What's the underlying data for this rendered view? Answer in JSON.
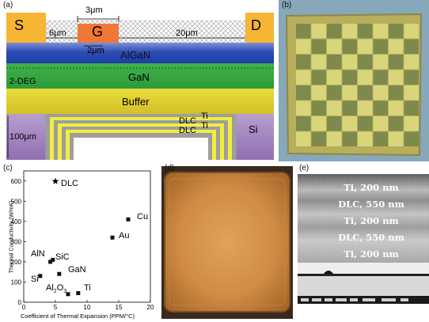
{
  "panels": {
    "a": {
      "label": "(a)",
      "s_label": "S",
      "g_label": "G",
      "d_label": "D",
      "dim_3um": "3μm",
      "dim_6um": "6μm",
      "dim_20um": "20μm",
      "dim_2um": "2μm",
      "algan": "AlGaN",
      "twodeg": "2-DEG",
      "gan": "GaN",
      "buffer": "Buffer",
      "dlc1": "DLC",
      "ti1": "Ti",
      "dlc2": "DLC",
      "ti2": "Ti",
      "dim_100um": "100μm",
      "si": "Si",
      "colors": {
        "electrode": "#f6b533",
        "algan": "#2b4eb4",
        "gan": "#3fb249",
        "buffer": "#e6d633",
        "si": "#9a79b8",
        "ti": "#f2ef3c",
        "dlc": "#9e9e9e"
      }
    },
    "b": {
      "label": "(b)"
    },
    "c": {
      "label": "(c)"
    },
    "d": {
      "label": "(d)"
    },
    "e": {
      "label": "(e)",
      "layers": [
        "Ti, 200 nm",
        "DLC, 550 nm",
        "Ti, 200 nm",
        "DLC, 550 nm",
        "Ti, 200 nm"
      ]
    }
  },
  "chart_data": {
    "type": "scatter",
    "xlabel": "Coefficient of Thermal Expansion (PPM/°C)",
    "ylabel": "Thermal Conductivity (W/mK)",
    "xlim": [
      0,
      20
    ],
    "ylim": [
      0,
      650
    ],
    "xticks": [
      "0",
      "5",
      "10",
      "15",
      "20"
    ],
    "yticks": [
      "0",
      "100",
      "200",
      "300",
      "400",
      "500",
      "600"
    ],
    "xtick_values": [
      0,
      5,
      10,
      15,
      20
    ],
    "ytick_values": [
      0,
      100,
      200,
      300,
      400,
      500,
      600
    ],
    "points": [
      {
        "name": "DLC",
        "x": 5.0,
        "y": 600,
        "marker": "star"
      },
      {
        "name": "Cu",
        "x": 16.5,
        "y": 410,
        "marker": "square"
      },
      {
        "name": "Au",
        "x": 14.0,
        "y": 320,
        "marker": "square"
      },
      {
        "name": "AlN",
        "x": 4.2,
        "y": 200,
        "marker": "square"
      },
      {
        "name": "SiC",
        "x": 4.6,
        "y": 210,
        "marker": "square"
      },
      {
        "name": "GaN",
        "x": 5.6,
        "y": 140,
        "marker": "square"
      },
      {
        "name": "Si",
        "x": 2.6,
        "y": 130,
        "marker": "square"
      },
      {
        "name": "Al2O3",
        "x": 7.0,
        "y": 40,
        "marker": "square"
      },
      {
        "name": "Ti",
        "x": 8.6,
        "y": 45,
        "marker": "square"
      }
    ],
    "display_labels": {
      "DLC": "DLC",
      "Cu": "Cu",
      "Au": "Au",
      "AlN": "AlN",
      "SiC": "SiC",
      "GaN": "GaN",
      "Si": "Si",
      "Al2O3_main": "Al",
      "Al2O3_sub1": "2",
      "Al2O3_o": "O",
      "Al2O3_sub2": "3",
      "Ti": "Ti"
    }
  }
}
